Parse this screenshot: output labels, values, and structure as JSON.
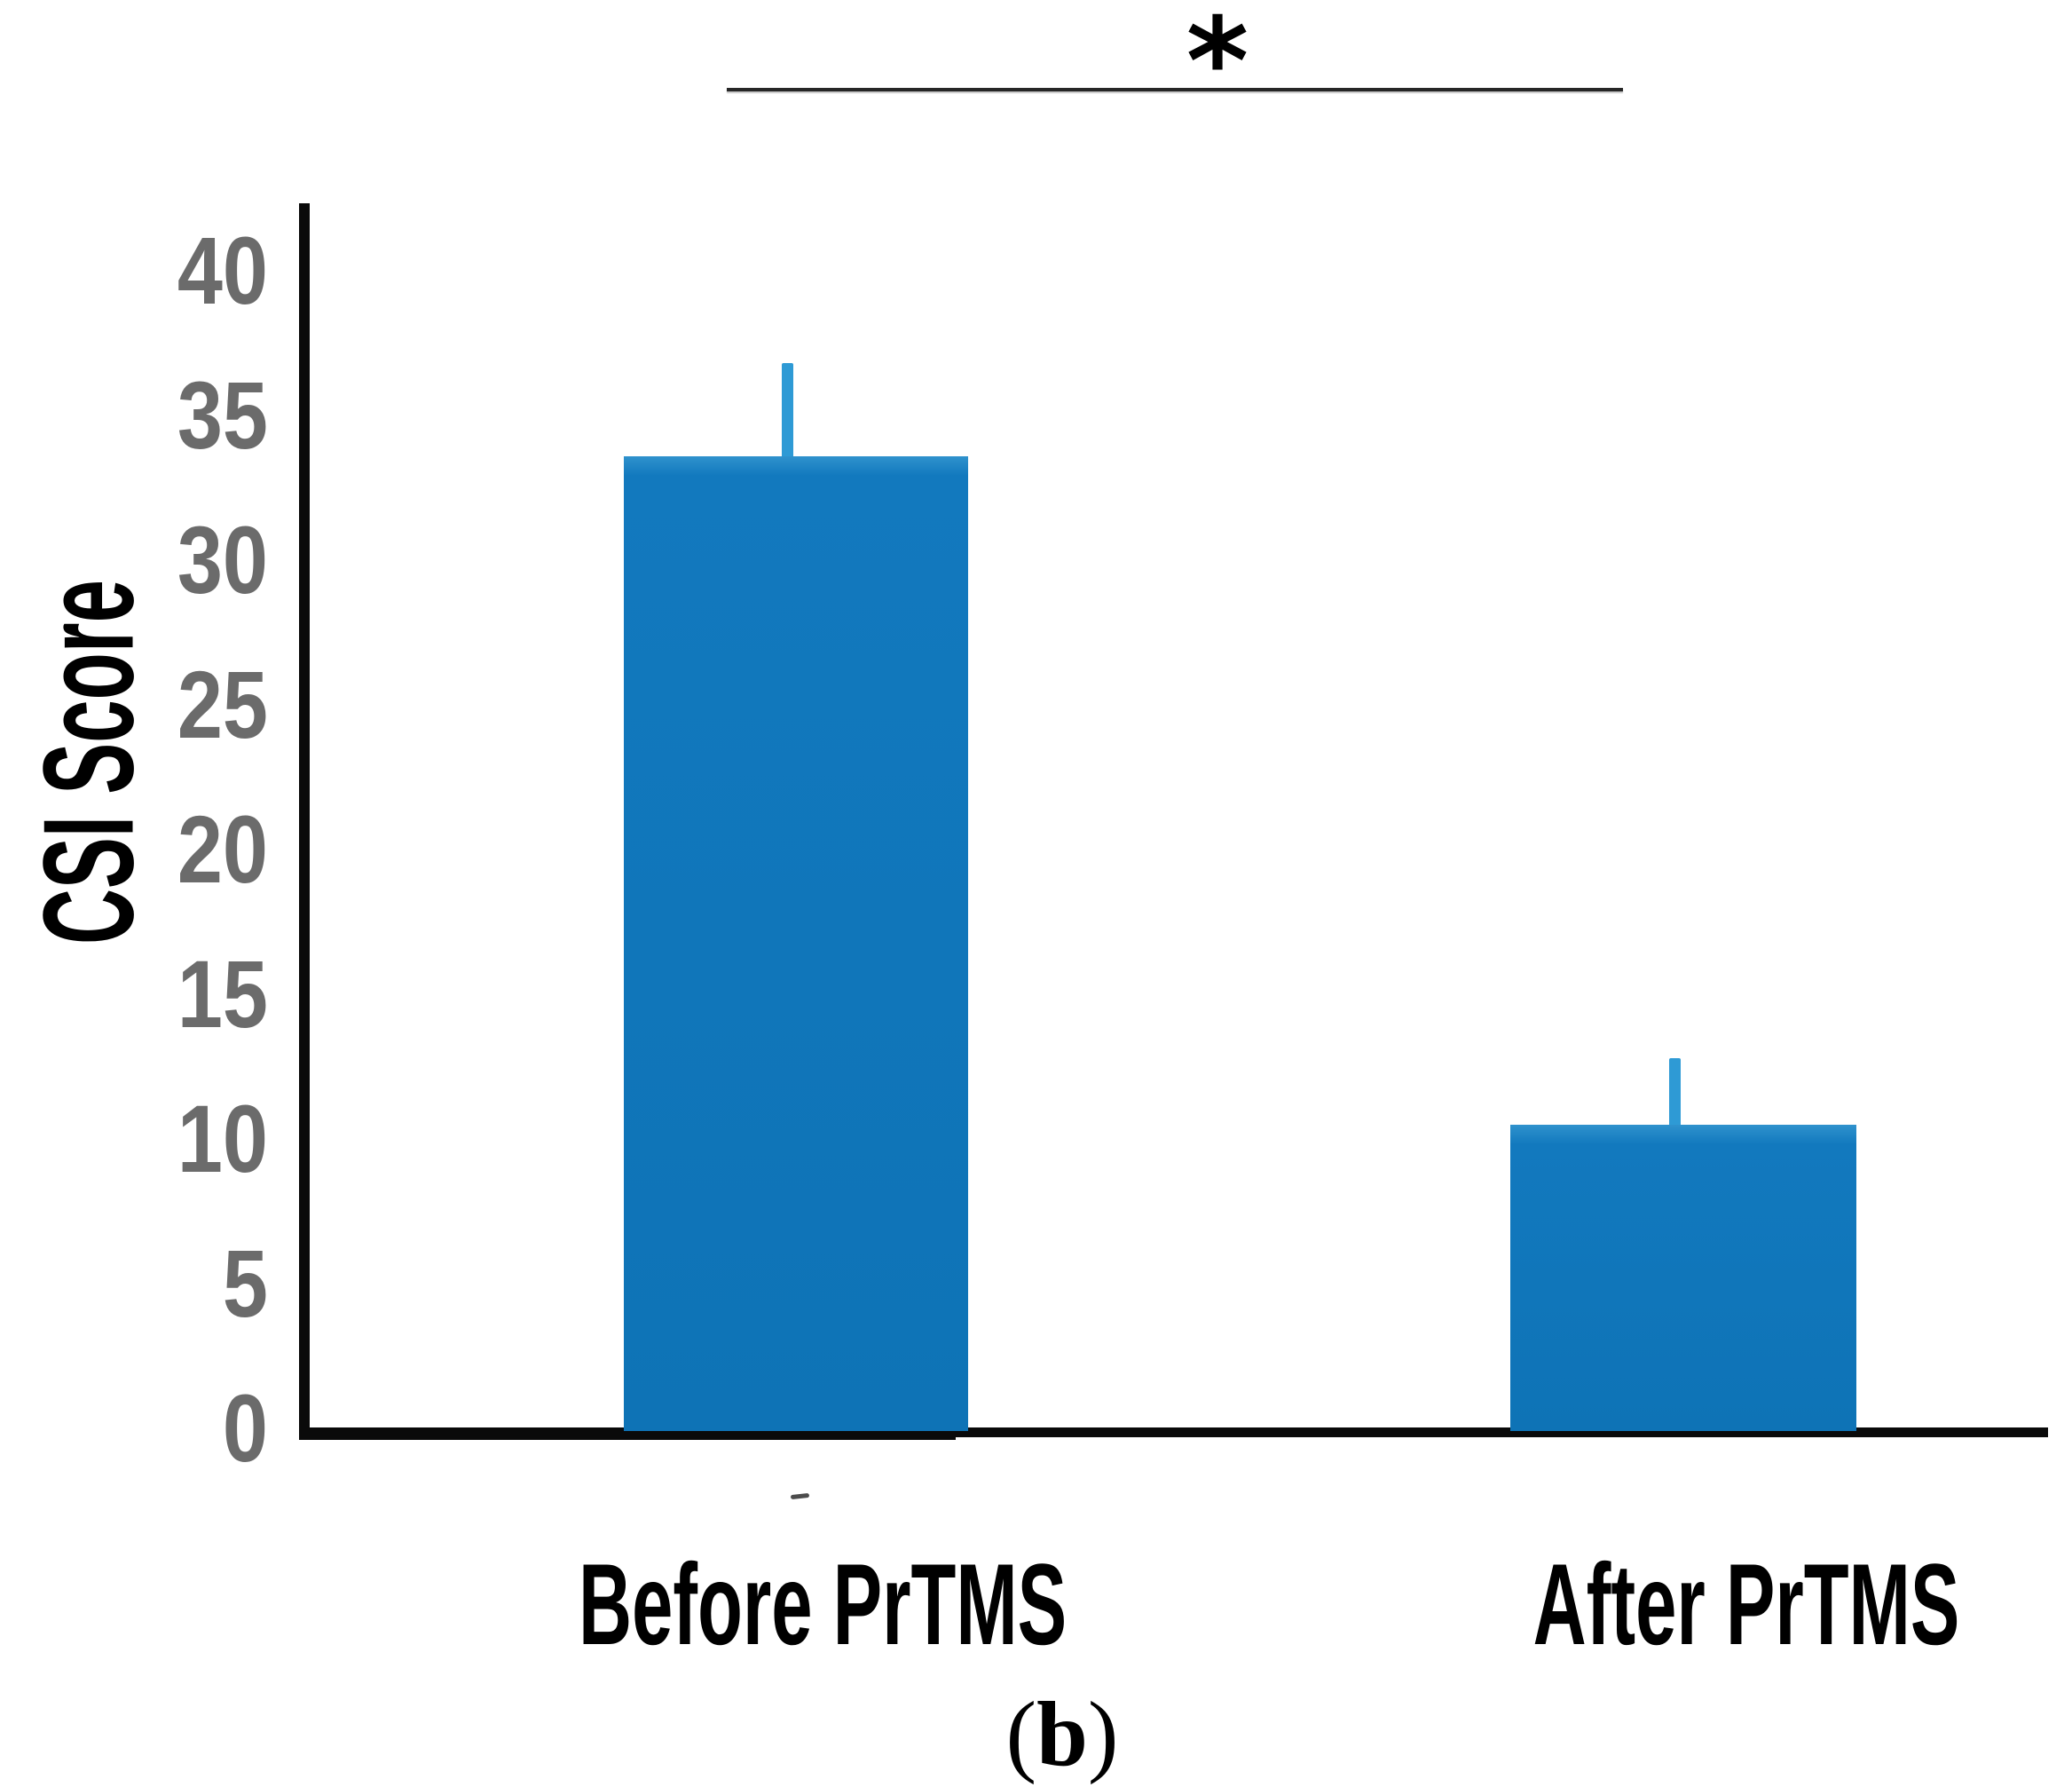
{
  "figure": {
    "caption": {
      "open": "(",
      "letter": "b",
      "close": ")"
    }
  },
  "chart_data": {
    "type": "bar",
    "title": "",
    "ylabel": "CSI Score",
    "xlabel": "",
    "categories": [
      "Before PrTMS",
      "After PrTMS"
    ],
    "values": [
      33.6,
      10.5
    ],
    "error_upper": [
      3.2,
      2.3
    ],
    "yticks": [
      0,
      5,
      10,
      15,
      20,
      25,
      30,
      35,
      40
    ],
    "ylim": [
      0,
      42.5
    ],
    "grid": false,
    "legend": "none",
    "significance": {
      "label": "*",
      "between": [
        "Before PrTMS",
        "After PrTMS"
      ]
    },
    "colors": {
      "bar": "#1177bd",
      "bar_top_highlight": "#2f92cd",
      "error_bar": "#2e9ad5",
      "axis": "#0a0a0a",
      "tick_label": "#6b6b6b",
      "significance_line": "#262626"
    }
  }
}
